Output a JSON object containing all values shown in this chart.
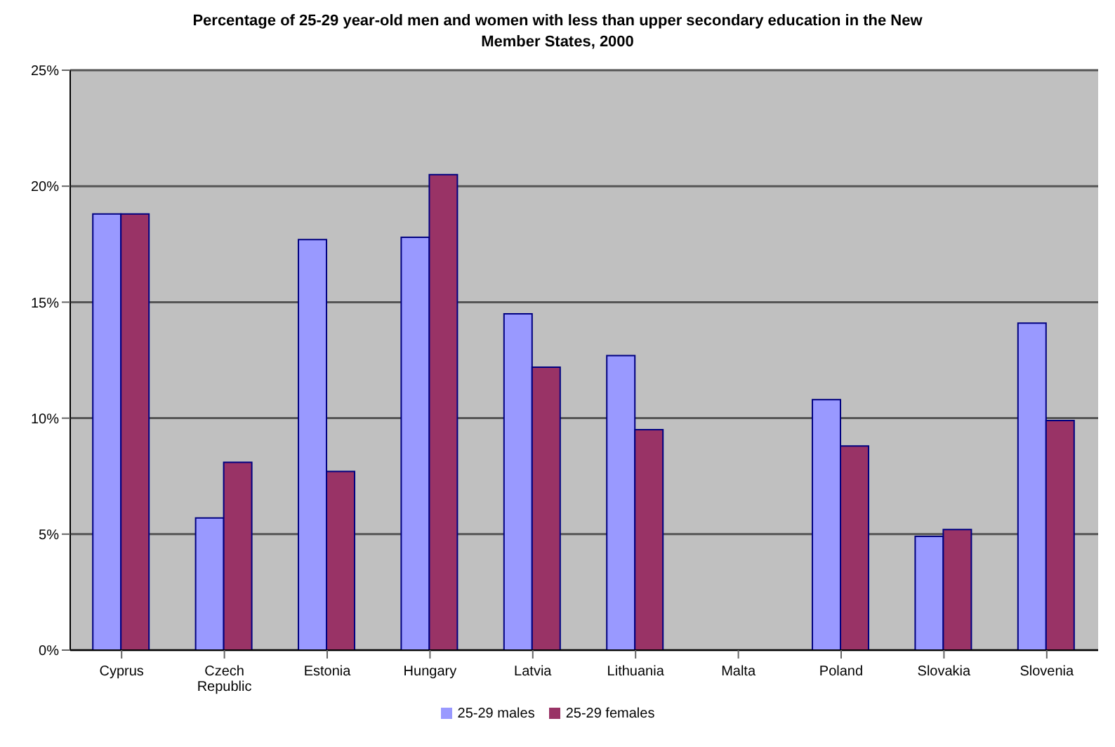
{
  "chart_data": {
    "type": "bar",
    "title": "Percentage of 25-29 year-old men and women with less than upper secondary education in the New Member States, 2000",
    "categories": [
      "Cyprus",
      "Czech Republic",
      "Estonia",
      "Hungary",
      "Latvia",
      "Lithuania",
      "Malta",
      "Poland",
      "Slovakia",
      "Slovenia"
    ],
    "series": [
      {
        "name": "25-29 males",
        "color": "#9999ff",
        "values": [
          18.8,
          5.7,
          17.7,
          17.8,
          14.5,
          12.7,
          null,
          10.8,
          4.9,
          14.1
        ]
      },
      {
        "name": "25-29 females",
        "color": "#993366",
        "values": [
          18.8,
          8.1,
          7.7,
          20.5,
          12.2,
          9.5,
          null,
          8.8,
          5.2,
          9.9
        ]
      }
    ],
    "ylim": [
      0,
      25
    ],
    "yticks": [
      {
        "value": 0,
        "label": "0%"
      },
      {
        "value": 5,
        "label": "5%"
      },
      {
        "value": 10,
        "label": "10%"
      },
      {
        "value": 15,
        "label": "15%"
      },
      {
        "value": 20,
        "label": "20%"
      },
      {
        "value": 25,
        "label": "25%"
      }
    ],
    "grid": "y",
    "legend": "bottom"
  }
}
